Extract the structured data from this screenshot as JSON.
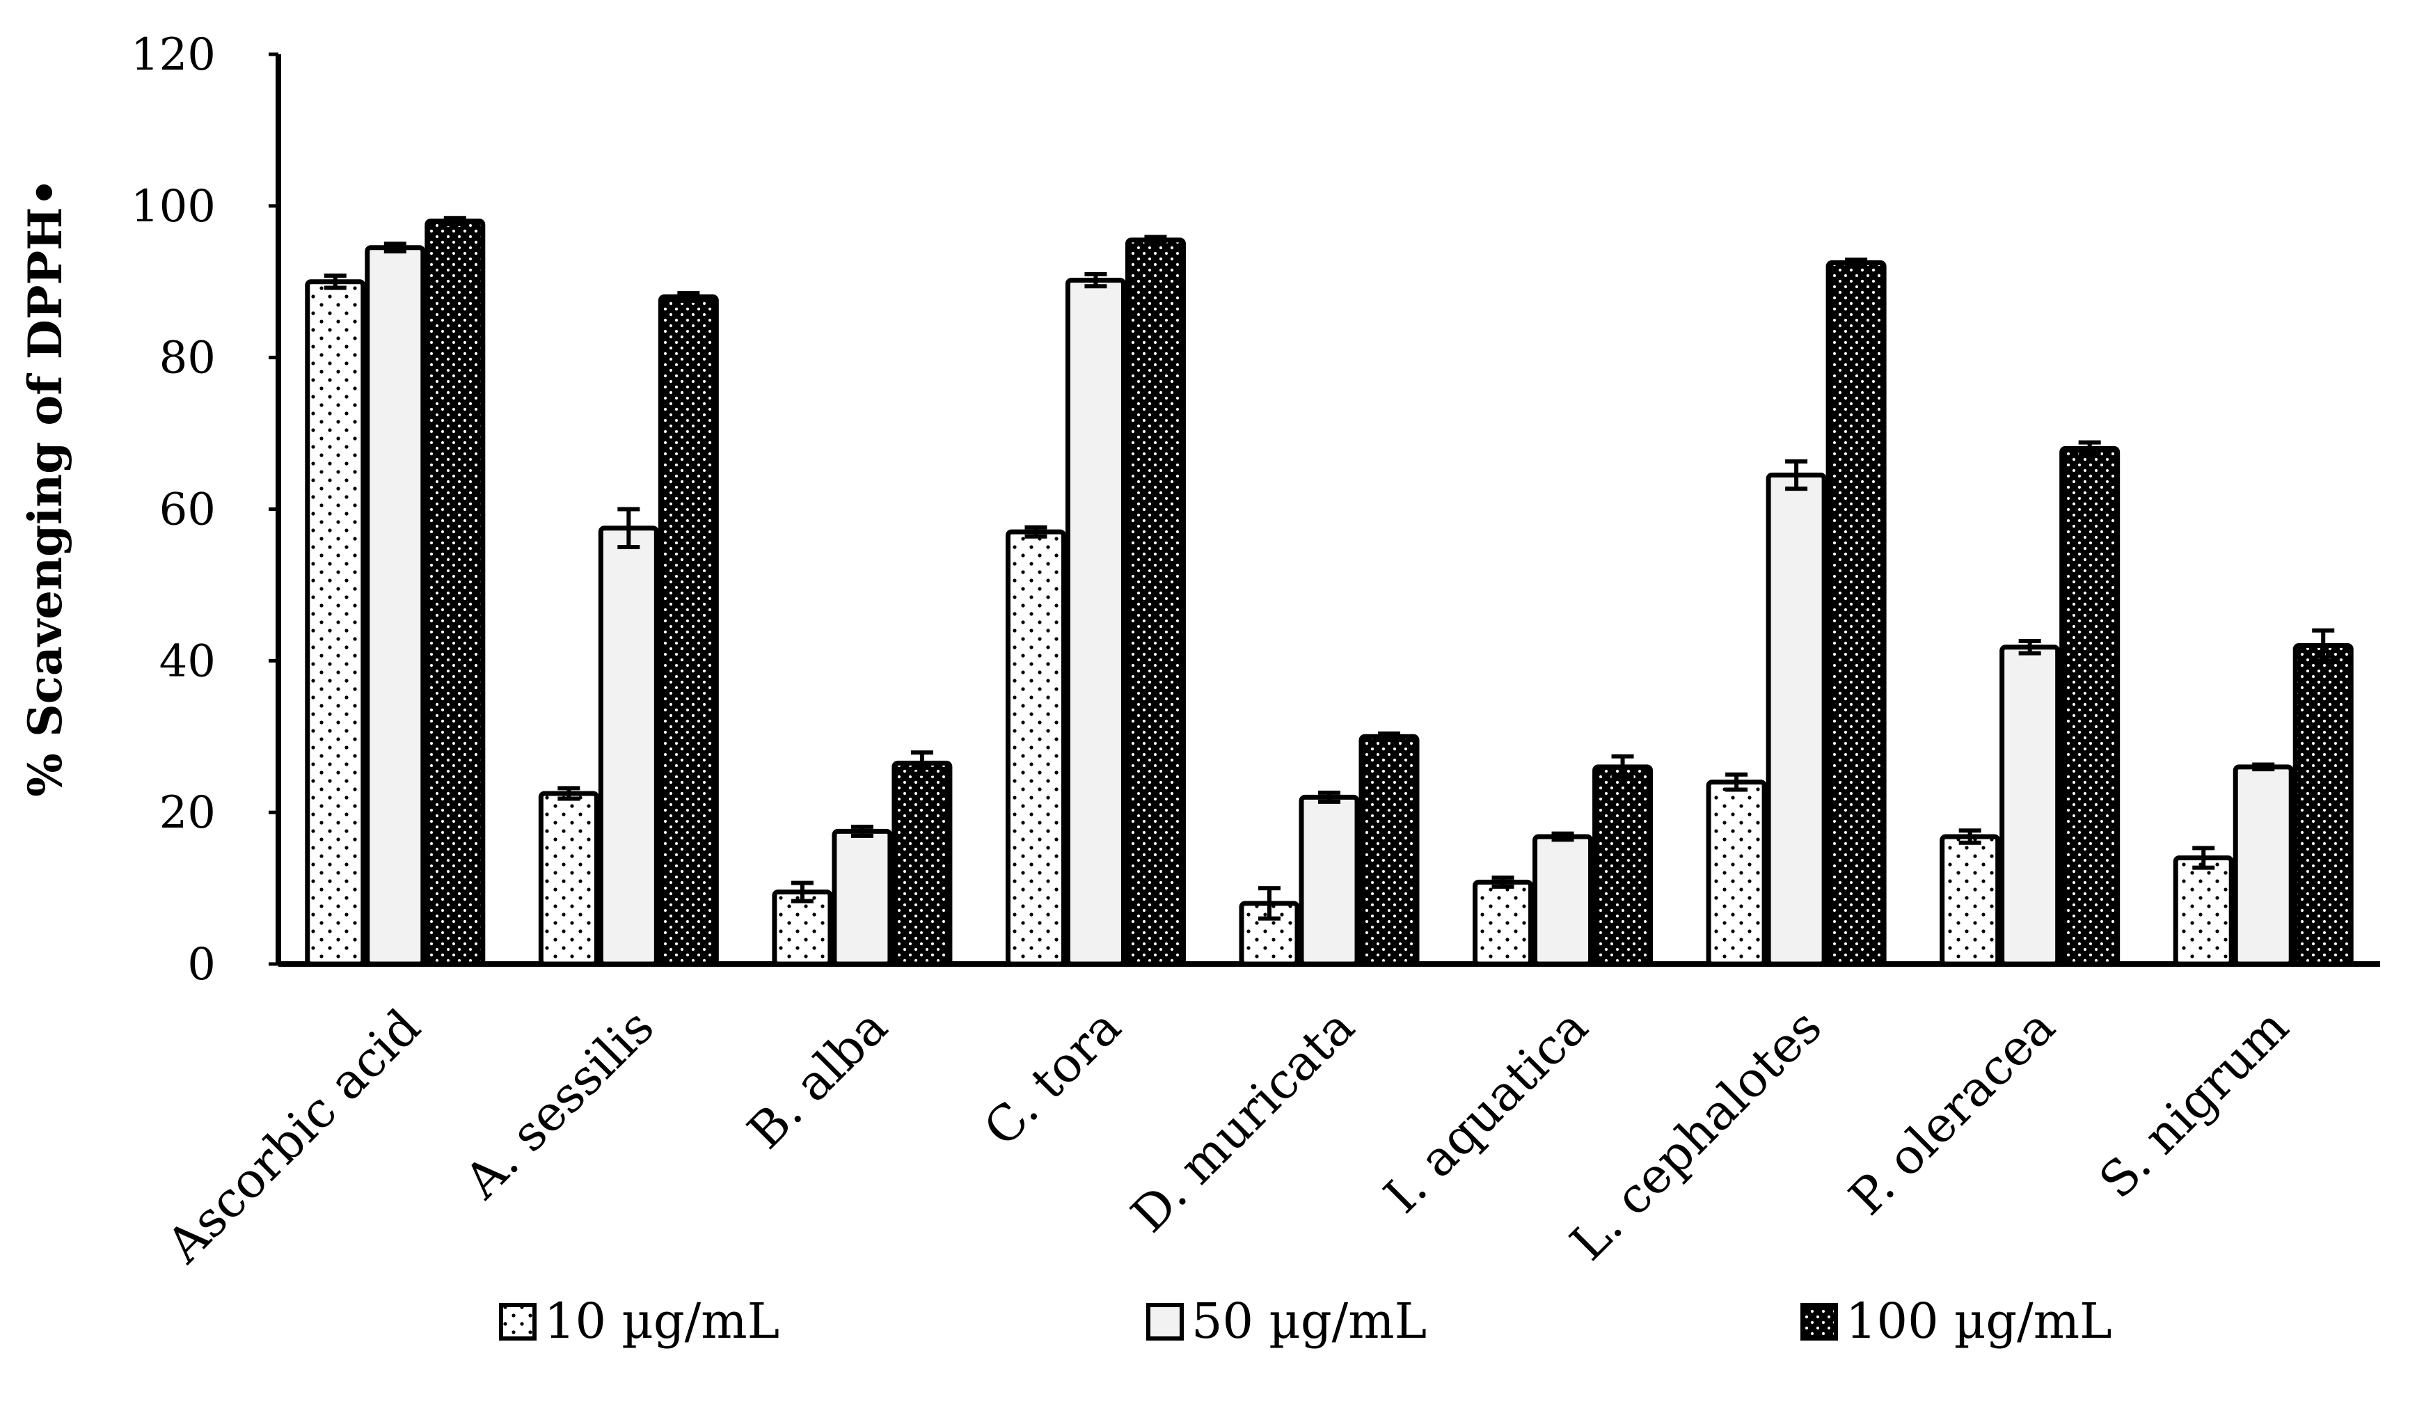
{
  "chart_data": {
    "type": "bar",
    "title": "",
    "xlabel": "",
    "ylabel": "% Scavenging of DPPH•",
    "ylim": [
      0,
      120
    ],
    "yticks": [
      0,
      20,
      40,
      60,
      80,
      100,
      120
    ],
    "grid": false,
    "legend_position": "bottom",
    "categories": [
      "Ascorbic acid",
      "A. sessilis",
      "B. alba",
      "C. tora",
      "D. muricata",
      "I. aquatica",
      "L. cephalotes",
      "P. oleracea",
      "S. nigrum"
    ],
    "series": [
      {
        "name": "10 µg/mL",
        "pattern": "sparse-dots",
        "fill": "#ffffff",
        "values": [
          90,
          22.5,
          9.5,
          57,
          8,
          10.8,
          24,
          16.8,
          14
        ],
        "errors": [
          0.8,
          0.7,
          1.2,
          0.6,
          2.0,
          0.6,
          1.0,
          0.8,
          1.3
        ]
      },
      {
        "name": "50 µg/mL",
        "pattern": "solid",
        "fill": "#f2f2f2",
        "values": [
          94.5,
          57.5,
          17.5,
          90.2,
          22,
          16.8,
          64.5,
          41.8,
          26
        ],
        "errors": [
          0.5,
          2.5,
          0.6,
          0.8,
          0.6,
          0.4,
          1.8,
          0.8,
          0.3
        ]
      },
      {
        "name": "100 µg/mL",
        "pattern": "dense-dots",
        "fill": "#000000",
        "values": [
          98,
          88,
          26.5,
          95.5,
          30,
          26,
          92.5,
          68,
          42
        ],
        "errors": [
          0.4,
          0.5,
          1.4,
          0.4,
          0.4,
          1.4,
          0.4,
          0.8,
          2.0
        ]
      }
    ]
  }
}
